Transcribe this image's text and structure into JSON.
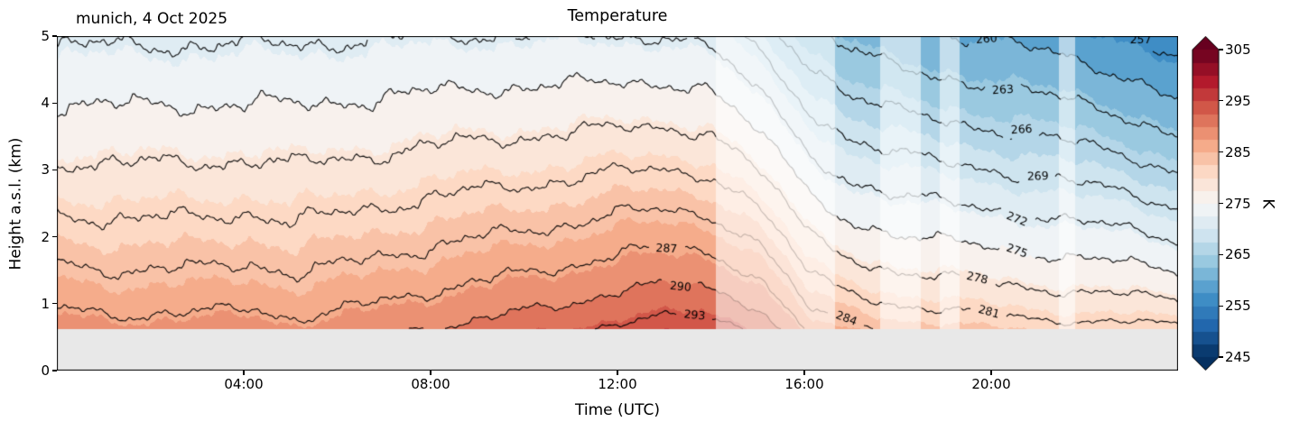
{
  "figure": {
    "title": "Temperature",
    "annotation": "munich, 4 Oct 2025"
  },
  "chart_data": {
    "type": "heatmap",
    "subtype": "filled-contour-time-height-section",
    "title": "Temperature",
    "annotation": "munich, 4 Oct 2025",
    "xlabel": "Time (UTC)",
    "ylabel": "Height a.s.l. (km)",
    "x_range_hours": [
      0,
      24
    ],
    "y_range_km": [
      0,
      5
    ],
    "x_ticks": [
      {
        "t": 4,
        "label": "04:00"
      },
      {
        "t": 8,
        "label": "08:00"
      },
      {
        "t": 12,
        "label": "12:00"
      },
      {
        "t": 16,
        "label": "16:00"
      },
      {
        "t": 20,
        "label": "20:00"
      }
    ],
    "y_ticks": [
      0,
      1,
      2,
      3,
      4,
      5
    ],
    "grid": false,
    "colorbar": {
      "label": "K",
      "vmin": 245,
      "vmax": 305,
      "ticks": [
        245,
        255,
        265,
        275,
        285,
        295,
        305
      ],
      "extend": "both",
      "position": "right"
    },
    "fill_level_step": 2.5,
    "contour_line_levels": [
      257,
      260,
      263,
      266,
      269,
      272,
      275,
      278,
      281,
      284,
      287,
      290,
      293
    ],
    "contour_labels": [
      {
        "level": 293,
        "t": 13.65
      },
      {
        "level": 290,
        "t": 13.35
      },
      {
        "level": 287,
        "t": 13.05
      },
      {
        "level": 284,
        "t": 16.9
      },
      {
        "level": 281,
        "t": 19.95
      },
      {
        "level": 278,
        "t": 19.7
      },
      {
        "level": 275,
        "t": 20.55
      },
      {
        "level": 272,
        "t": 20.55
      },
      {
        "level": 269,
        "t": 21.0
      },
      {
        "level": 266,
        "t": 20.65
      },
      {
        "level": 263,
        "t": 20.25
      },
      {
        "level": 260,
        "t": 19.9
      },
      {
        "level": 257,
        "t": 23.2
      }
    ],
    "colormap_rdbu_r": [
      "#053061",
      "#2166ac",
      "#4393c9",
      "#92c5de",
      "#d1e5f0",
      "#f7f7f7",
      "#fddbc7",
      "#f4a582",
      "#d6604d",
      "#b2182b",
      "#67001f"
    ],
    "data_min_height_km": 0.62,
    "profile_exponent": 0.85,
    "surface_temp_series": [
      [
        0,
        288.8
      ],
      [
        1.5,
        288.3
      ],
      [
        3,
        288.4
      ],
      [
        4.2,
        288.9
      ],
      [
        5,
        288.0
      ],
      [
        5.8,
        288.4
      ],
      [
        7,
        289.4
      ],
      [
        8,
        290.2
      ],
      [
        9,
        291.0
      ],
      [
        10,
        291.8
      ],
      [
        11,
        292.6
      ],
      [
        12,
        293.9
      ],
      [
        13,
        294.5
      ],
      [
        13.8,
        294.6
      ],
      [
        14.6,
        293.6
      ],
      [
        15.1,
        292.4
      ],
      [
        15.6,
        289.5
      ],
      [
        16.1,
        286.4
      ],
      [
        16.6,
        285.3
      ],
      [
        17.2,
        284.6
      ],
      [
        18,
        283.8
      ],
      [
        19,
        283.3
      ],
      [
        20,
        282.8
      ],
      [
        21,
        282.4
      ],
      [
        22,
        282.1
      ],
      [
        23,
        282.0
      ],
      [
        24,
        281.8
      ]
    ],
    "top_temp_series": [
      [
        0,
        271.5
      ],
      [
        5,
        271.6
      ],
      [
        9,
        272.1
      ],
      [
        13,
        272.0
      ],
      [
        14,
        271.2
      ],
      [
        15,
        268.0
      ],
      [
        16,
        264.5
      ],
      [
        17,
        262.0
      ],
      [
        18,
        260.8
      ],
      [
        19,
        260.2
      ],
      [
        20,
        259.7
      ],
      [
        21,
        259.0
      ],
      [
        22,
        258.2
      ],
      [
        23,
        257.0
      ],
      [
        24,
        255.0
      ]
    ],
    "masked_time_intervals": [
      [
        14.1,
        16.66
      ],
      [
        17.63,
        18.5
      ],
      [
        18.9,
        19.33
      ],
      [
        21.45,
        21.8
      ]
    ],
    "no_data_color": "#e8e8e8",
    "background_color": "#ffffff"
  }
}
